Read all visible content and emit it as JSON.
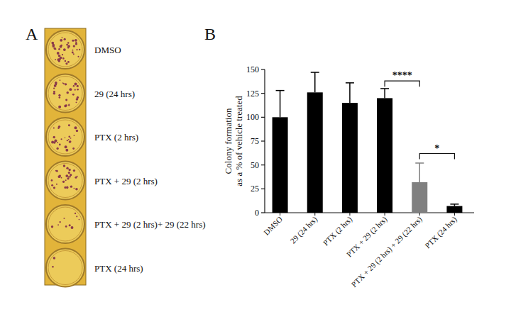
{
  "panel_a": {
    "label": "A",
    "rows": [
      "DMSO",
      "29 (24 hrs)",
      "PTX (2 hrs)",
      "PTX + 29 (2 hrs)",
      "PTX + 29 (2 hrs)+ 29 (22 hrs)",
      "PTX (24 hrs)"
    ]
  },
  "chart_data": {
    "type": "bar",
    "panel_label": "B",
    "ylabel": [
      "Colony formation",
      "as a % of vehicle treated"
    ],
    "categories": [
      "DMSO",
      "29 (24 hrs)",
      "PTX (2 hrs)",
      "PTX + 29 (2 hrs)",
      "PTX + 29 (2 hrs) + 29 (22 hrs)",
      "PTX (24 hrs)"
    ],
    "values": [
      100,
      126,
      115,
      120,
      32,
      7
    ],
    "errors": [
      28,
      21,
      21,
      10,
      20,
      2
    ],
    "colors": [
      "#000000",
      "#000000",
      "#000000",
      "#000000",
      "#808080",
      "#000000"
    ],
    "ylim": [
      0,
      150
    ],
    "yticks": [
      0,
      25,
      50,
      75,
      100,
      125,
      150
    ],
    "grid": false,
    "annotations": [
      {
        "text": "****",
        "between": [
          3,
          4
        ],
        "y": 138
      },
      {
        "text": "*",
        "between": [
          4,
          5
        ],
        "y": 62
      }
    ]
  }
}
